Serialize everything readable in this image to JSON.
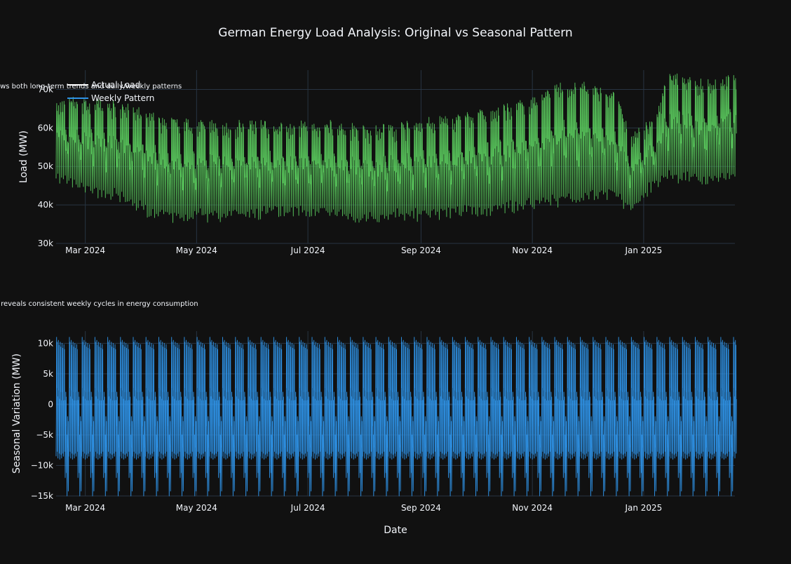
{
  "title": "German Energy Load Analysis: Original vs Seasonal Pattern",
  "legend": {
    "placement": "top-left",
    "items": [
      {
        "name": "Actual Load",
        "color": "#ffffff"
      },
      {
        "name": "Weekly Pattern",
        "color": "#2e91e5"
      }
    ]
  },
  "colors": {
    "background": "#111111",
    "grid": "#283442",
    "text": "#f2f5fa",
    "actual": "#56c15a",
    "seasonal": "#2e91e5"
  },
  "chart_data": [
    {
      "type": "line",
      "subtitle": "ows both long-term trends and daily/weekly patterns",
      "xlabel": "",
      "ylabel": "Load (MW)",
      "x_range": [
        "2024-02-14",
        "2025-02-20"
      ],
      "ylim": [
        30000,
        75000
      ],
      "y_ticks": [
        30000,
        40000,
        50000,
        60000,
        70000
      ],
      "y_tick_labels": [
        "30k",
        "40k",
        "50k",
        "60k",
        "70k"
      ],
      "x_ticks": [
        "2024-03-01",
        "2024-05-01",
        "2024-07-01",
        "2024-09-01",
        "2024-11-01",
        "2025-01-01"
      ],
      "x_tick_labels": [
        "Mar 2024",
        "May 2024",
        "Jul 2024",
        "Sep 2024",
        "Nov 2024",
        "Jan 2025"
      ],
      "grid": true,
      "series": [
        {
          "name": "Actual Load",
          "color": "#56c15a",
          "sampling": "daily min/max envelope",
          "x": [
            "2024-02-14",
            "2024-03-01",
            "2024-03-20",
            "2024-04-01",
            "2024-04-15",
            "2024-05-01",
            "2024-05-15",
            "2024-06-01",
            "2024-06-15",
            "2024-07-01",
            "2024-07-15",
            "2024-08-01",
            "2024-08-15",
            "2024-09-01",
            "2024-09-15",
            "2024-10-01",
            "2024-10-15",
            "2024-11-01",
            "2024-11-15",
            "2024-12-01",
            "2024-12-15",
            "2024-12-25",
            "2025-01-05",
            "2025-01-15",
            "2025-02-01",
            "2025-02-20"
          ],
          "daily_max": [
            68000,
            68000,
            67000,
            65000,
            63000,
            62000,
            62000,
            62000,
            62000,
            62000,
            62000,
            61000,
            61000,
            63000,
            63000,
            65000,
            66000,
            68000,
            72000,
            72000,
            70000,
            60000,
            62000,
            75000,
            73000,
            74000
          ],
          "daily_min": [
            45000,
            42000,
            40000,
            37000,
            35000,
            35000,
            35000,
            36000,
            36000,
            36000,
            35500,
            35000,
            35000,
            35500,
            36000,
            36000,
            37000,
            38000,
            39000,
            40000,
            40000,
            37500,
            42000,
            45000,
            44000,
            45000
          ]
        }
      ]
    },
    {
      "type": "line",
      "subtitle": "t reveals consistent weekly cycles in energy consumption",
      "xlabel": "Date",
      "ylabel": "Seasonal Variation (MW)",
      "x_range": [
        "2024-02-14",
        "2025-02-20"
      ],
      "ylim": [
        -15000,
        12000
      ],
      "y_ticks": [
        -15000,
        -10000,
        -5000,
        0,
        5000,
        10000
      ],
      "y_tick_labels": [
        "−15k",
        "−10k",
        "−5k",
        "0",
        "5k",
        "10k"
      ],
      "x_ticks": [
        "2024-03-01",
        "2024-05-01",
        "2024-07-01",
        "2024-09-01",
        "2024-11-01",
        "2025-01-01"
      ],
      "x_tick_labels": [
        "Mar 2024",
        "May 2024",
        "Jul 2024",
        "Sep 2024",
        "Nov 2024",
        "Jan 2025"
      ],
      "grid": true,
      "series": [
        {
          "name": "Weekly Pattern",
          "color": "#2e91e5",
          "period_days": 7,
          "weekly_profile_daily_max": [
            11000,
            10500,
            10200,
            10000,
            9800,
            2000,
            -2000
          ],
          "weekly_profile_daily_min": [
            -8500,
            -8800,
            -9000,
            -8800,
            -8500,
            -12000,
            -15000
          ]
        }
      ]
    }
  ]
}
